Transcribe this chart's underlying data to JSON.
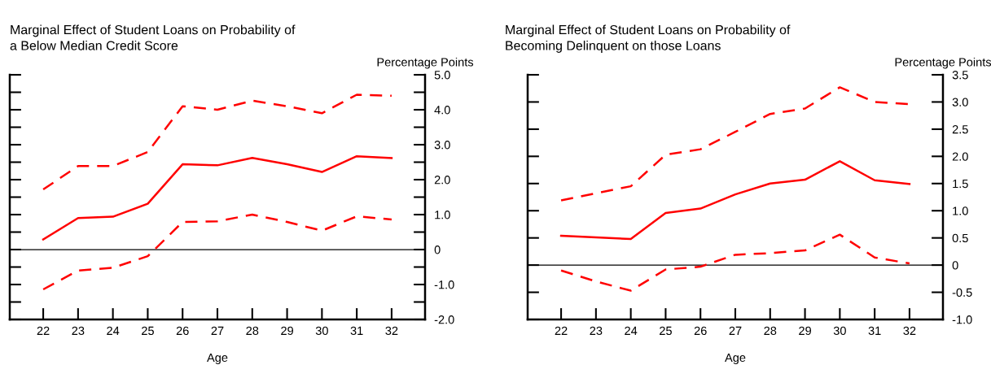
{
  "chart_data": [
    {
      "type": "line",
      "title": "Marginal Effect of Student Loans on Probability of\na Below Median Credit Score",
      "xlabel": "Age",
      "ylabel": "Percentage Points",
      "categories": [
        "22",
        "23",
        "24",
        "25",
        "26",
        "27",
        "28",
        "29",
        "30",
        "31",
        "32"
      ],
      "series": [
        {
          "color": "#ff0000",
          "line_style": "solid",
          "values": [
            0.29,
            0.9,
            0.94,
            1.31,
            2.44,
            2.41,
            2.62,
            2.44,
            2.22,
            2.67,
            2.62
          ]
        },
        {
          "color": "#ff0000",
          "line_style": "dashed",
          "values": [
            1.72,
            2.39,
            2.39,
            2.79,
            4.1,
            4.0,
            4.26,
            4.1,
            3.9,
            4.43,
            4.4
          ]
        },
        {
          "color": "#ff0000",
          "line_style": "dashed",
          "values": [
            -1.14,
            -0.6,
            -0.52,
            -0.19,
            0.79,
            0.81,
            1.0,
            0.79,
            0.54,
            0.95,
            0.86
          ]
        }
      ],
      "ylim": [
        -2,
        5
      ],
      "yticks": [
        {
          "value": -2,
          "label": "-2.0"
        },
        {
          "value": -1.5,
          "label": null
        },
        {
          "value": -1,
          "label": "-1.0"
        },
        {
          "value": -0.5,
          "label": null
        },
        0,
        {
          "value": 0.5,
          "label": null
        },
        {
          "value": 1,
          "label": "1.0"
        },
        {
          "value": 1.5,
          "label": null
        },
        {
          "value": 2,
          "label": "2.0"
        },
        {
          "value": 2.5,
          "label": null
        },
        {
          "value": 3,
          "label": "3.0"
        },
        {
          "value": 3.5,
          "label": null
        },
        {
          "value": 4,
          "label": "4.0"
        },
        {
          "value": 4.5,
          "label": null
        },
        {
          "value": 5,
          "label": "5.0"
        }
      ],
      "ref_lines": [
        {
          "axis": "y",
          "value": 0,
          "color": "#000000"
        }
      ],
      "grid": false,
      "legend": false
    },
    {
      "type": "line",
      "title": "Marginal Effect of Student Loans on Probability of\nBecoming Delinquent on those Loans",
      "xlabel": "Age",
      "ylabel": "Percentage Points",
      "categories": [
        "22",
        "23",
        "24",
        "25",
        "26",
        "27",
        "28",
        "29",
        "30",
        "31",
        "32"
      ],
      "series": [
        {
          "color": "#ff0000",
          "line_style": "solid",
          "values": [
            0.54,
            0.51,
            0.48,
            0.96,
            1.04,
            1.3,
            1.5,
            1.57,
            1.91,
            1.56,
            1.49
          ]
        },
        {
          "color": "#ff0000",
          "line_style": "dashed",
          "values": [
            1.19,
            1.32,
            1.45,
            2.03,
            2.13,
            2.45,
            2.78,
            2.88,
            3.27,
            3.0,
            2.96
          ]
        },
        {
          "color": "#ff0000",
          "line_style": "dashed",
          "values": [
            -0.1,
            -0.3,
            -0.47,
            -0.08,
            -0.03,
            0.19,
            0.22,
            0.27,
            0.56,
            0.14,
            0.03
          ]
        }
      ],
      "ylim": [
        -1,
        3.5
      ],
      "yticks": [
        {
          "value": -1,
          "label": "-1.0"
        },
        {
          "value": -0.5,
          "label": "-0.5"
        },
        0,
        {
          "value": 0.5,
          "label": "0.5"
        },
        {
          "value": 1,
          "label": "1.0"
        },
        {
          "value": 1.5,
          "label": "1.5"
        },
        {
          "value": 2,
          "label": "2.0"
        },
        {
          "value": 2.5,
          "label": "2.5"
        },
        {
          "value": 3,
          "label": "3.0"
        },
        {
          "value": 3.5,
          "label": "3.5"
        }
      ],
      "ref_lines": [
        {
          "axis": "y",
          "value": 0,
          "color": "#000000"
        }
      ],
      "grid": false,
      "legend": false
    }
  ]
}
